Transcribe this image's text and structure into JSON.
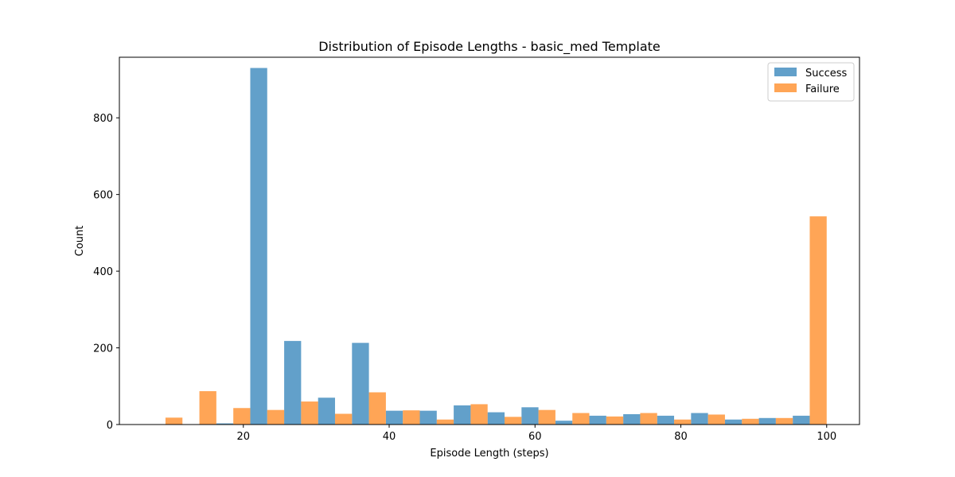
{
  "chart_data": {
    "type": "bar",
    "title": "Distribution of Episode Lengths - basic_med Template",
    "xlabel": "Episode Length (steps)",
    "ylabel": "Count",
    "xlim": [
      3,
      104.5
    ],
    "ylim": [
      0,
      958
    ],
    "xticks": [
      20,
      40,
      60,
      80,
      100
    ],
    "yticks": [
      0,
      200,
      400,
      600,
      800
    ],
    "grid": false,
    "legend_position": "top-right",
    "bin_edges": [
      7,
      11.65,
      16.3,
      20.95,
      25.6,
      30.25,
      34.9,
      39.55,
      44.2,
      48.85,
      53.5,
      58.15,
      62.8,
      67.45,
      72.1,
      76.75,
      81.4,
      86.05,
      90.7,
      95.35,
      100
    ],
    "series": [
      {
        "name": "Success",
        "color": "#1f77b4",
        "values": [
          0,
          0,
          3,
          930,
          218,
          70,
          213,
          36,
          36,
          50,
          32,
          45,
          10,
          23,
          27,
          23,
          30,
          13,
          17,
          23
        ]
      },
      {
        "name": "Failure",
        "color": "#ff7f0e",
        "values": [
          18,
          87,
          43,
          38,
          60,
          28,
          84,
          37,
          13,
          53,
          20,
          38,
          30,
          21,
          30,
          13,
          26,
          15,
          17,
          543
        ]
      }
    ]
  }
}
